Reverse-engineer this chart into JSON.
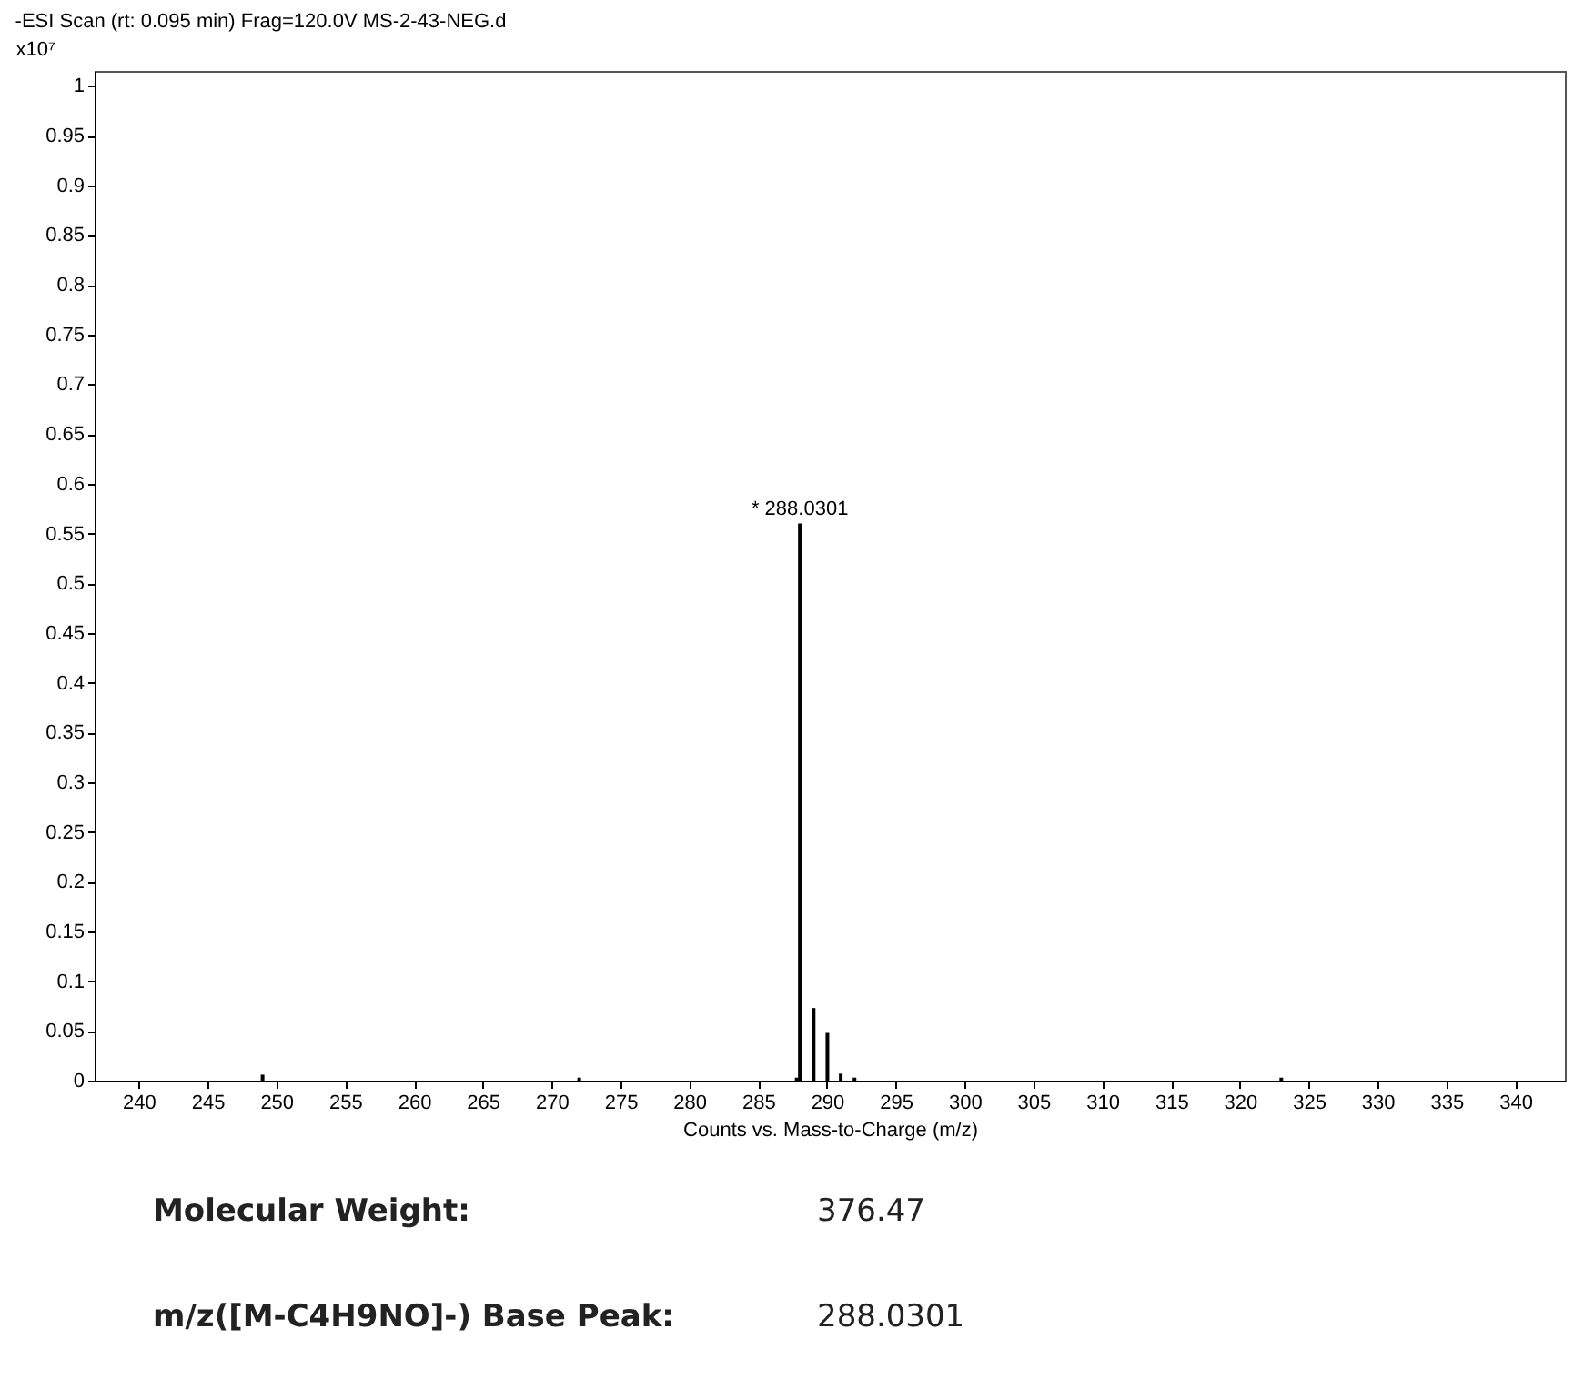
{
  "chart_data": {
    "type": "bar",
    "title": "-ESI Scan (rt: 0.095 min) Frag=120.0V MS-2-43-NEG.d",
    "xlabel": "Counts vs. Mass-to-Charge (m/z)",
    "ylabel": "x10⁷",
    "x": [
      249.0,
      272.0,
      287.8,
      288.0301,
      289.03,
      290.03,
      291.0,
      292.0,
      323.0
    ],
    "values": [
      0.006,
      0.003,
      0.003,
      0.56,
      0.073,
      0.048,
      0.007,
      0.003,
      0.003
    ],
    "color": "#000000",
    "xlim": [
      236.8,
      343.6
    ],
    "xticks": [
      240,
      245,
      250,
      255,
      260,
      265,
      270,
      275,
      280,
      285,
      290,
      295,
      300,
      305,
      310,
      315,
      320,
      325,
      330,
      335,
      340
    ],
    "ylim": [
      0,
      1.015
    ],
    "yticks": [
      0,
      0.05,
      0.1,
      0.15,
      0.2,
      0.25,
      0.3,
      0.35,
      0.4,
      0.45,
      0.5,
      0.55,
      0.6,
      0.65,
      0.7,
      0.75,
      0.8,
      0.85,
      0.9,
      0.95,
      1
    ],
    "grid": false,
    "annotations": [
      {
        "text": "* 288.0301",
        "x": 288.0301,
        "y": 0.56
      },
      "Molecular Weight:",
      "376.47",
      "m/z([M-C4H9NO]-) Base Peak:",
      "288.0301"
    ]
  }
}
